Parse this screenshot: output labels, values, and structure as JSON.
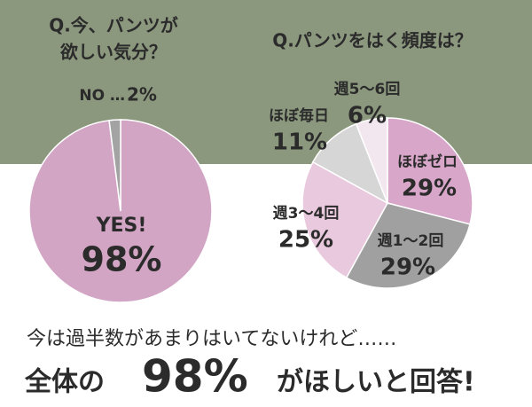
{
  "chart_data": [
    {
      "type": "pie",
      "title": [
        "Q.今、パンツが",
        "欲しい気分？"
      ],
      "categories": [
        "YES!",
        "NO …"
      ],
      "values": [
        98,
        2
      ],
      "value_labels": [
        "98%",
        "2%"
      ],
      "colors": [
        "#d3a5c5",
        "#a3a3a3"
      ]
    },
    {
      "type": "pie",
      "title": [
        "Q.パンツをはく頻度は？"
      ],
      "categories": [
        "ほぼゼロ",
        "週1〜2回",
        "週3〜4回",
        "ほぼ毎日",
        "週5〜6回"
      ],
      "values": [
        29,
        29,
        25,
        11,
        6
      ],
      "value_labels": [
        "29%",
        "29%",
        "25%",
        "11%",
        "6%"
      ],
      "colors": [
        "#d7a6c8",
        "#a0a0a0",
        "#e9c9dd",
        "#d6d6d6",
        "#f3e7ef"
      ]
    }
  ],
  "footer": {
    "line1": "今は過半数があまりはいてないけれど……",
    "pre": "全体の",
    "value": "98%",
    "post": "がほしいと回答!"
  }
}
